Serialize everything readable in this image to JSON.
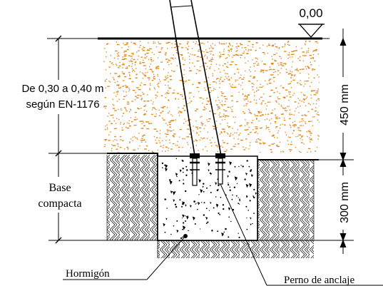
{
  "diagram": {
    "level": {
      "value": "0,00",
      "symbol": "triangle-level-marker"
    },
    "depth_note": {
      "line1": "De 0,30 a 0,40 m",
      "line2": "según EN-1176"
    },
    "base_note": {
      "line1": "Base",
      "line2": "compacta"
    },
    "dimensions": {
      "upper": "450 mm",
      "lower": "300 mm"
    },
    "callouts": {
      "concrete": "Hormigón",
      "anchor_bolt": "Perno de anclaje"
    },
    "colors": {
      "sand_dots": "#e08a1e",
      "line": "#000000",
      "background": "#ffffff"
    }
  }
}
